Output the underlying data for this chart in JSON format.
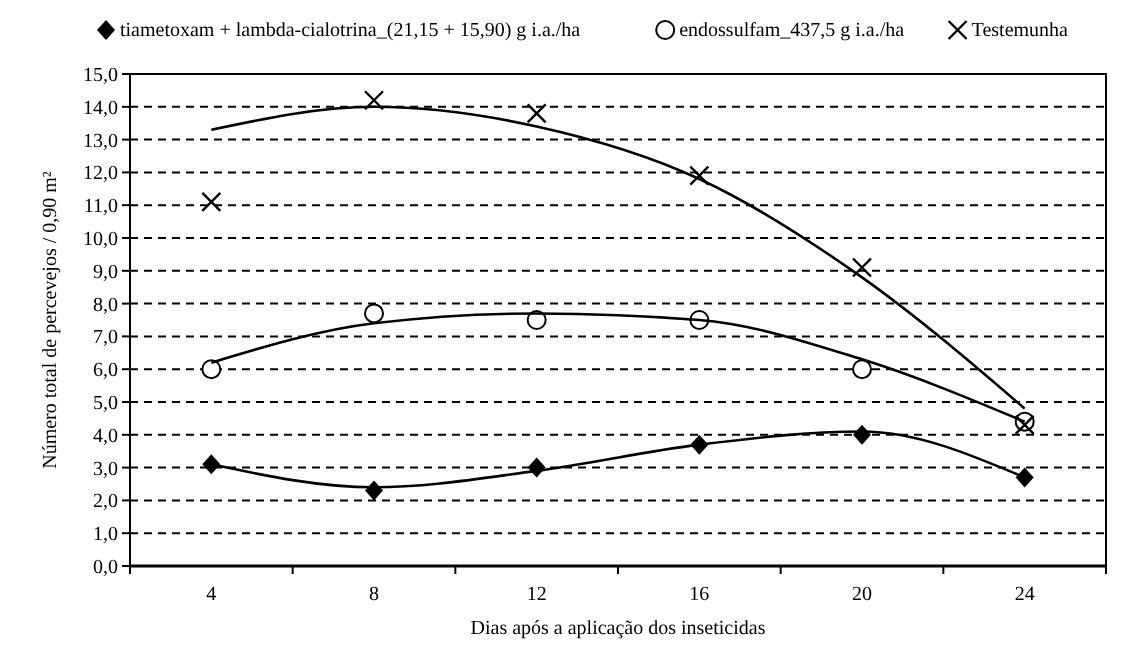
{
  "chart_data": {
    "type": "scatter",
    "xlabel": "Dias após a aplicação dos inseticidas",
    "ylabel": "Número total de percevejos / 0,90 m²",
    "categories": [
      "4",
      "8",
      "12",
      "16",
      "20",
      "24"
    ],
    "series": [
      {
        "name": "tiametoxam + lambda-cialotrina_(21,15 + 15,90) g i.a./ha",
        "color": "#000000",
        "marker": "diamond",
        "values": [
          3.1,
          2.3,
          3.0,
          3.7,
          4.0,
          2.7
        ]
      },
      {
        "name": "endossulfam_437,5 g i.a./ha",
        "color": "#000000",
        "marker": "circle",
        "values": [
          6.0,
          7.7,
          7.5,
          7.5,
          6.0,
          4.4
        ]
      },
      {
        "name": "Testemunha",
        "color": "#000000",
        "marker": "cross",
        "values": [
          11.1,
          14.2,
          13.8,
          11.9,
          9.1,
          4.3
        ]
      },
      {
        "type": "line",
        "color": "#000000",
        "values": [
          3.1,
          2.4,
          2.9,
          3.7,
          4.1,
          2.7
        ]
      },
      {
        "type": "line",
        "color": "#000000",
        "values": [
          6.2,
          7.4,
          7.7,
          7.5,
          6.3,
          4.4
        ]
      },
      {
        "type": "line",
        "color": "#000000",
        "values": [
          13.3,
          14.0,
          13.4,
          11.8,
          8.8,
          4.8
        ]
      }
    ],
    "ylim": [
      0,
      15
    ],
    "yticks": [
      {
        "value": 0,
        "label": "0,0"
      },
      {
        "value": 1,
        "label": "1,0"
      },
      {
        "value": 2,
        "label": "2,0"
      },
      {
        "value": 3,
        "label": "3,0"
      },
      {
        "value": 4,
        "label": "4,0"
      },
      {
        "value": 5,
        "label": "5,0"
      },
      {
        "value": 6,
        "label": "6,0"
      },
      {
        "value": 7,
        "label": "7,0"
      },
      {
        "value": 8,
        "label": "8,0"
      },
      {
        "value": 9,
        "label": "9,0"
      },
      {
        "value": 10,
        "label": "10,0"
      },
      {
        "value": 11,
        "label": "11,0"
      },
      {
        "value": 12,
        "label": "12,0"
      },
      {
        "value": 13,
        "label": "13,0"
      },
      {
        "value": 14,
        "label": "14,0"
      },
      {
        "value": 15,
        "label": "15,0"
      }
    ],
    "grid": "y",
    "legend": "top"
  }
}
